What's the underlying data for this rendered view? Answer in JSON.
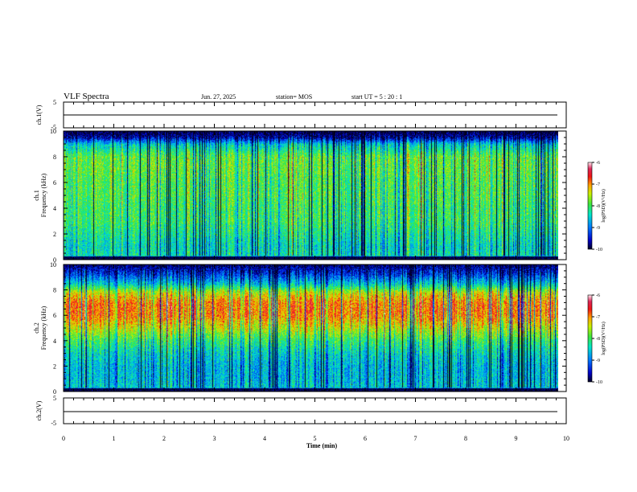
{
  "header": {
    "title": "VLF Spectra",
    "date": "Jun. 27, 2025",
    "station": "station= MOS",
    "start": "start  UT =  5 : 20 : 1"
  },
  "chart_data": [
    {
      "type": "line",
      "panel": "top-waveform",
      "ylabel": "ch.1(V)",
      "ylim": [
        -5,
        5
      ],
      "yticks": [
        "5",
        "-5"
      ],
      "x": [
        0,
        9.83
      ],
      "level": 0,
      "xlim": [
        0,
        10
      ]
    },
    {
      "type": "heatmap",
      "panel": "ch1-spectrogram",
      "ylabel": "ch.1\nFrequency (kHz)",
      "ylim": [
        0,
        10
      ],
      "yticks": [
        "0",
        "2",
        "4",
        "6",
        "8",
        "10"
      ],
      "xlim": [
        0,
        10
      ],
      "data_end_min": 9.83,
      "colorbar": {
        "label": "log(PSD)(V²/Hz)",
        "ticks": [
          "-6",
          "-7",
          "-8",
          "-9",
          "-10"
        ],
        "range": [
          -10,
          -6
        ]
      },
      "profile": {
        "freq_khz": [
          0,
          0.3,
          1,
          2,
          3,
          4,
          5,
          6,
          7,
          8,
          9,
          9.5,
          10
        ],
        "log_psd": [
          -10,
          -8.3,
          -8.4,
          -8.2,
          -8.0,
          -8.0,
          -7.9,
          -7.9,
          -7.8,
          -7.8,
          -8.5,
          -9.6,
          -10
        ]
      }
    },
    {
      "type": "heatmap",
      "panel": "ch2-spectrogram",
      "ylabel": "ch.2\nFrequency (kHz)",
      "ylim": [
        0,
        10
      ],
      "yticks": [
        "0",
        "2",
        "4",
        "6",
        "8",
        "10"
      ],
      "xlim": [
        0,
        10
      ],
      "data_end_min": 9.83,
      "colorbar": {
        "label": "log(PSD)(V²/Hz)",
        "ticks": [
          "-6",
          "-7",
          "-8",
          "-9",
          "-10"
        ],
        "range": [
          -10,
          -6
        ]
      },
      "profile": {
        "freq_khz": [
          0,
          0.3,
          1,
          2,
          3,
          4,
          5,
          6,
          7,
          7.8,
          8.5,
          9.3,
          10
        ],
        "log_psd": [
          -10,
          -8.5,
          -8.6,
          -8.6,
          -8.4,
          -8.0,
          -7.4,
          -6.9,
          -6.9,
          -7.4,
          -8.5,
          -9.3,
          -9.8
        ]
      }
    },
    {
      "type": "line",
      "panel": "bottom-waveform",
      "ylabel": "ch.2(V)",
      "ylim": [
        -5,
        5
      ],
      "yticks": [
        "5",
        "-5"
      ],
      "x": [
        0,
        9.83
      ],
      "level": 0,
      "xlim": [
        0,
        10
      ],
      "xlabel": "Time (min)",
      "xticks": [
        "0",
        "1",
        "2",
        "3",
        "4",
        "5",
        "6",
        "7",
        "8",
        "9",
        "10"
      ]
    }
  ]
}
